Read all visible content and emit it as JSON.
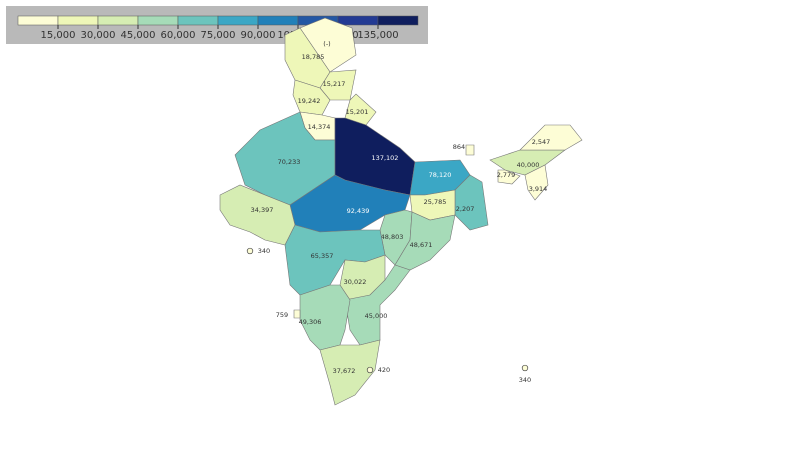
{
  "chart_data": {
    "type": "choropleth",
    "colorbar": {
      "clim": [
        0,
        150000
      ],
      "colors": [
        "#fdfdd6",
        "#eef7b8",
        "#d6edb3",
        "#a6dbb8",
        "#6cc4bd",
        "#3ba7c5",
        "#2180b9",
        "#2457a4",
        "#233a93",
        "#0f1e5e"
      ],
      "ticks": [
        {
          "value": 15000,
          "label": "15,000"
        },
        {
          "value": 30000,
          "label": "30,000"
        },
        {
          "value": 45000,
          "label": "45,000"
        },
        {
          "value": 60000,
          "label": "60,000"
        },
        {
          "value": 75000,
          "label": "75,000"
        },
        {
          "value": 90000,
          "label": "90,000"
        },
        {
          "value": 105000,
          "label": "105,000"
        },
        {
          "value": 120000,
          "label": "120,000"
        },
        {
          "value": 135000,
          "label": "135,000"
        }
      ]
    },
    "values": [
      null,
      18785,
      15217,
      19242,
      15201,
      14374,
      70233,
      137102,
      78120,
      62207,
      25785,
      92439,
      34397,
      48803,
      48671,
      65357,
      30022,
      45000,
      49306,
      37672,
      40000,
      2547,
      2779,
      3914,
      864,
      759,
      340,
      420,
      340
    ],
    "value_labels": [
      "(-)",
      "18,785",
      "15,217",
      "19,242",
      "15,201",
      "14,374",
      "70,233",
      "137,102",
      "78,120",
      "62,207",
      "25,785",
      "92,439",
      "34,397",
      "48,803",
      "48,671",
      "65,357",
      "30,022",
      "45,000",
      "49,306",
      "37,672",
      "40,000",
      "2,547",
      "2,779",
      "3,914",
      "864",
      "759",
      "340",
      "420",
      "340"
    ]
  }
}
